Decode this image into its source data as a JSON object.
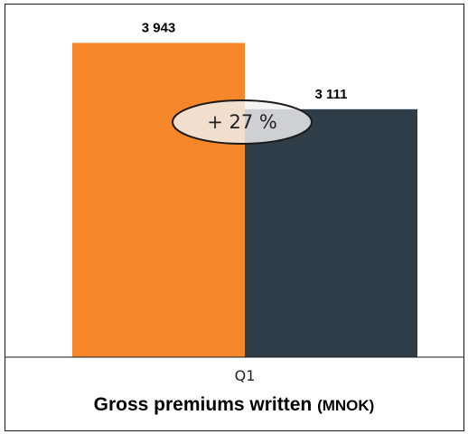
{
  "chart_data": {
    "type": "bar",
    "title": "Gross premiums written",
    "title_unit": "(MNOK)",
    "categories": [
      "Q1"
    ],
    "series": [
      {
        "value": 3943,
        "value_label": "3 943",
        "color": "#f5862a"
      },
      {
        "value": 3111,
        "value_label": "3 111",
        "color": "#2e3d47"
      }
    ],
    "ylim": [
      0,
      4300
    ],
    "grid": false,
    "annotation": {
      "text": "+ 27 %",
      "fill": "#f2f2f2"
    }
  }
}
